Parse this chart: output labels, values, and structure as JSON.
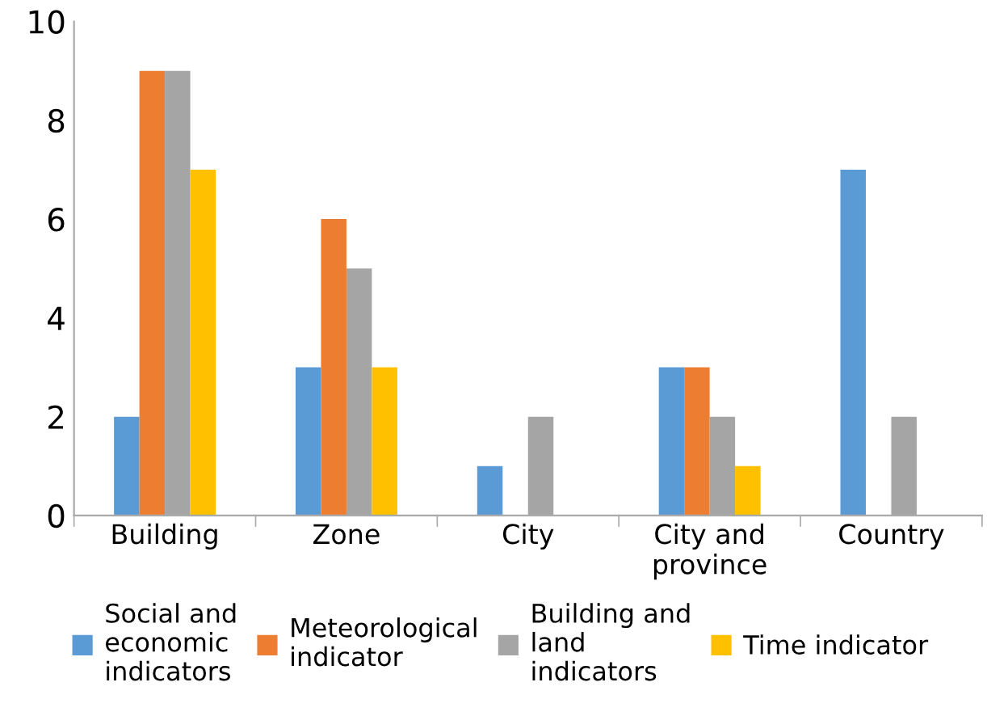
{
  "chart_data": {
    "type": "bar",
    "categories": [
      "Building",
      "Zone",
      "City",
      "City and\nprovince",
      "Country"
    ],
    "series": [
      {
        "name": "Social and\neconomic\nindicators",
        "color": "#5b9bd5",
        "values": [
          2,
          3,
          1,
          3,
          7
        ]
      },
      {
        "name": "Meteorological\nindicator",
        "color": "#ed7d31",
        "values": [
          9,
          6,
          0,
          3,
          0
        ]
      },
      {
        "name": "Building and\nland\nindicators",
        "color": "#a5a5a5",
        "values": [
          9,
          5,
          2,
          2,
          2
        ]
      },
      {
        "name": "Time indicator",
        "color": "#ffc000",
        "values": [
          7,
          3,
          0,
          1,
          0
        ]
      }
    ],
    "ylim": [
      0,
      10
    ],
    "yticks": [
      0,
      2,
      4,
      6,
      8,
      10
    ],
    "grid": false,
    "legend": "bottom"
  }
}
